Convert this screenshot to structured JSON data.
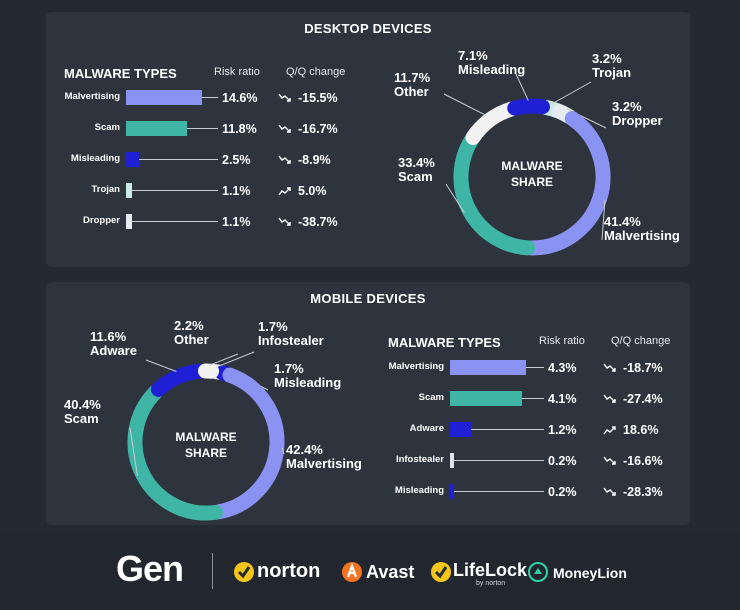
{
  "colors": {
    "Malvertising": "#8b93f2",
    "Scam": "#3fb5a6",
    "Misleading": "#1f1fd6",
    "Trojan": "#c9ece6",
    "Dropper": "#e6ebf2",
    "Other": "#f2f2f2",
    "Adware": "#1f1fd6",
    "Infostealer": "#dde3ea"
  },
  "desktop": {
    "title": "DESKTOP DEVICES",
    "table_title": "MALWARE TYPES",
    "col_risk": "Risk ratio",
    "col_qq": "Q/Q change",
    "center_label": [
      "MALWARE",
      "SHARE"
    ]
  },
  "mobile": {
    "title": "MOBILE DEVICES",
    "table_title": "MALWARE TYPES",
    "col_risk": "Risk ratio",
    "col_qq": "Q/Q change",
    "center_label": [
      "MALWARE",
      "SHARE"
    ]
  },
  "chart_data": [
    {
      "id": "desktop-risk",
      "type": "bar",
      "title": "MALWARE TYPES",
      "categories": [
        "Malvertising",
        "Scam",
        "Misleading",
        "Trojan",
        "Dropper"
      ],
      "values": [
        14.6,
        11.8,
        2.5,
        1.1,
        1.1
      ],
      "value_labels": [
        "14.6%",
        "11.8%",
        "2.5%",
        "1.1%",
        "1.1%"
      ],
      "qq_change": [
        "-15.5%",
        "-16.7%",
        "-8.9%",
        "5.0%",
        "-38.7%"
      ],
      "qq_direction": [
        "down",
        "down",
        "down",
        "up",
        "down"
      ]
    },
    {
      "id": "desktop-share",
      "type": "pie",
      "slices": [
        {
          "label": "Malvertising",
          "value": 41.4,
          "value_label": "41.4%"
        },
        {
          "label": "Scam",
          "value": 33.4,
          "value_label": "33.4%"
        },
        {
          "label": "Other",
          "value": 11.7,
          "value_label": "11.7%"
        },
        {
          "label": "Misleading",
          "value": 7.1,
          "value_label": "7.1%"
        },
        {
          "label": "Trojan",
          "value": 3.2,
          "value_label": "3.2%"
        },
        {
          "label": "Dropper",
          "value": 3.2,
          "value_label": "3.2%"
        }
      ]
    },
    {
      "id": "mobile-risk",
      "type": "bar",
      "title": "MALWARE TYPES",
      "categories": [
        "Malvertising",
        "Scam",
        "Adware",
        "Infostealer",
        "Misleading"
      ],
      "values": [
        4.3,
        4.1,
        1.2,
        0.2,
        0.2
      ],
      "value_labels": [
        "4.3%",
        "4.1%",
        "1.2%",
        "0.2%",
        "0.2%"
      ],
      "qq_change": [
        "-18.7%",
        "-27.4%",
        "18.6%",
        "-16.6%",
        "-28.3%"
      ],
      "qq_direction": [
        "down",
        "down",
        "up",
        "down",
        "down"
      ]
    },
    {
      "id": "mobile-share",
      "type": "pie",
      "slices": [
        {
          "label": "Malvertising",
          "value": 42.4,
          "value_label": "42.4%"
        },
        {
          "label": "Scam",
          "value": 40.4,
          "value_label": "40.4%"
        },
        {
          "label": "Adware",
          "value": 11.6,
          "value_label": "11.6%"
        },
        {
          "label": "Other",
          "value": 2.2,
          "value_label": "2.2%"
        },
        {
          "label": "Infostealer",
          "value": 1.7,
          "value_label": "1.7%"
        },
        {
          "label": "Misleading",
          "value": 1.7,
          "value_label": "1.7%"
        }
      ]
    }
  ],
  "footer": {
    "brands": [
      "Gen",
      "norton",
      "Avast",
      "LifeLock",
      "by norton",
      "MoneyLion"
    ]
  }
}
